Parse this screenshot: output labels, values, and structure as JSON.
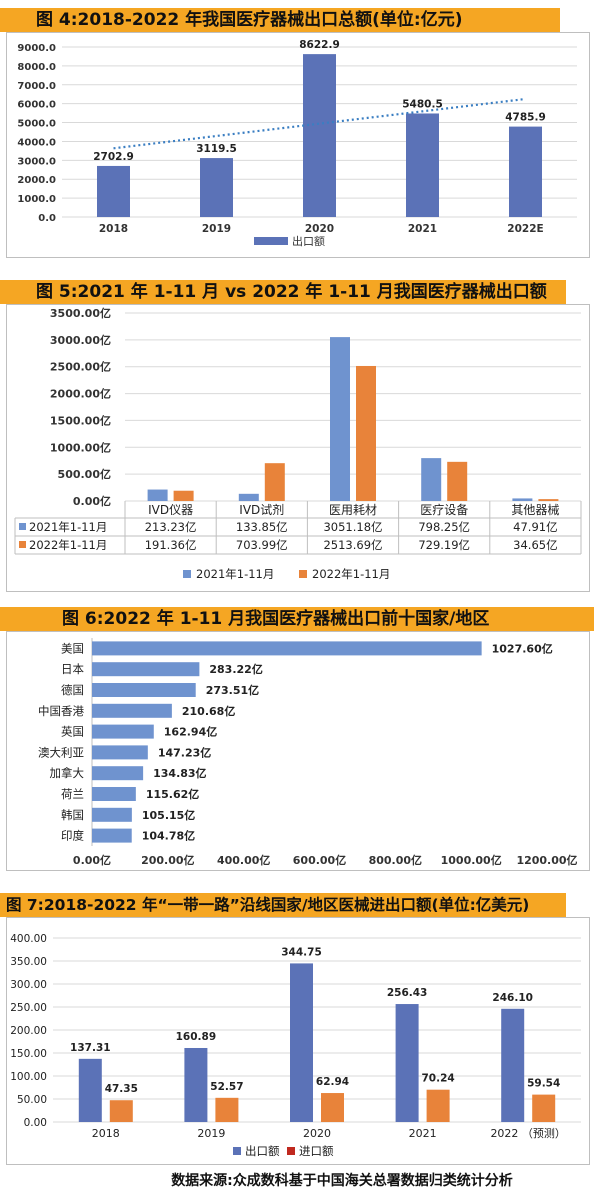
{
  "colors": {
    "title_bg": "#f5a623",
    "blue": "#5b72b7",
    "blue2": "#6f93cf",
    "orange": "#e8833a",
    "red": "#c0291f",
    "trend": "#3a7ec2"
  },
  "charts": [
    {
      "title": "图 4:2018-2022 年我国医疗器械出口总额(单位:亿元)",
      "chart_data": {
        "type": "bar",
        "categories": [
          "2018",
          "2019",
          "2020",
          "2021",
          "2022E"
        ],
        "series": [
          {
            "name": "出口额",
            "values": [
              2702.9,
              3119.5,
              8622.9,
              5480.5,
              4785.9
            ]
          }
        ],
        "value_labels": [
          "2702.9",
          "3119.5",
          "8622.9",
          "5480.5",
          "4785.9"
        ],
        "yticks": [
          "0.0",
          "1000.0",
          "2000.0",
          "3000.0",
          "4000.0",
          "5000.0",
          "6000.0",
          "7000.0",
          "8000.0",
          "9000.0"
        ],
        "ylim": [
          0,
          9000
        ],
        "trendline": "linear",
        "legend": "bottom"
      }
    },
    {
      "title": "图 5:2021 年 1-11 月 vs 2022 年 1-11 月我国医疗器械出口额",
      "chart_data": {
        "type": "bar",
        "categories": [
          "IVD仪器",
          "IVD试剂",
          "医用耗材",
          "医疗设备",
          "其他器械"
        ],
        "series": [
          {
            "name": "2021年1-11月",
            "values": [
              213.23,
              133.85,
              3051.18,
              798.25,
              47.91
            ],
            "labels": [
              "213.23亿",
              "133.85亿",
              "3051.18亿",
              "798.25亿",
              "47.91亿"
            ]
          },
          {
            "name": "2022年1-11月",
            "values": [
              191.36,
              703.99,
              2513.69,
              729.19,
              34.65
            ],
            "labels": [
              "191.36亿",
              "703.99亿",
              "2513.69亿",
              "729.19亿",
              "34.65亿"
            ]
          }
        ],
        "yticks": [
          "0.00亿",
          "500.00亿",
          "1000.00亿",
          "1500.00亿",
          "2000.00亿",
          "2500.00亿",
          "3000.00亿",
          "3500.00亿"
        ],
        "ylim": [
          0,
          3500
        ],
        "data_table": true,
        "legend": "bottom"
      }
    },
    {
      "title": "图 6:2022 年 1-11 月我国医疗器械出口前十国家/地区",
      "chart_data": {
        "type": "bar",
        "orientation": "horizontal",
        "categories": [
          "美国",
          "日本",
          "德国",
          "中国香港",
          "英国",
          "澳大利亚",
          "加拿大",
          "荷兰",
          "韩国",
          "印度"
        ],
        "values": [
          1027.6,
          283.22,
          273.51,
          210.68,
          162.94,
          147.23,
          134.83,
          115.62,
          105.15,
          104.78
        ],
        "value_labels": [
          "1027.60亿",
          "283.22亿",
          "273.51亿",
          "210.68亿",
          "162.94亿",
          "147.23亿",
          "134.83亿",
          "115.62亿",
          "105.15亿",
          "104.78亿"
        ],
        "xticks": [
          "0.00亿",
          "200.00亿",
          "400.00亿",
          "600.00亿",
          "800.00亿",
          "1000.00亿",
          "1200.00亿"
        ],
        "xlim": [
          0,
          1200
        ]
      }
    },
    {
      "title": "图 7:2018-2022 年“一带一路”沿线国家/地区医械进出口额(单位:亿美元)",
      "chart_data": {
        "type": "bar",
        "categories": [
          "2018",
          "2019",
          "2020",
          "2021",
          "2022 （预测）"
        ],
        "series": [
          {
            "name": "出口额",
            "values": [
              137.31,
              160.89,
              344.75,
              256.43,
              246.1
            ],
            "labels": [
              "137.31",
              "160.89",
              "344.75",
              "256.43",
              "246.10"
            ]
          },
          {
            "name": "进口额",
            "values": [
              47.35,
              52.57,
              62.94,
              70.24,
              59.54
            ],
            "labels": [
              "47.35",
              "52.57",
              "62.94",
              "70.24",
              "59.54"
            ]
          }
        ],
        "yticks": [
          "0.00",
          "50.00",
          "100.00",
          "150.00",
          "200.00",
          "250.00",
          "300.00",
          "350.00",
          "400.00"
        ],
        "ylim": [
          0,
          400
        ],
        "legend": "bottom"
      }
    }
  ],
  "source": "数据来源:众成数科基于中国海关总署数据归类统计分析"
}
